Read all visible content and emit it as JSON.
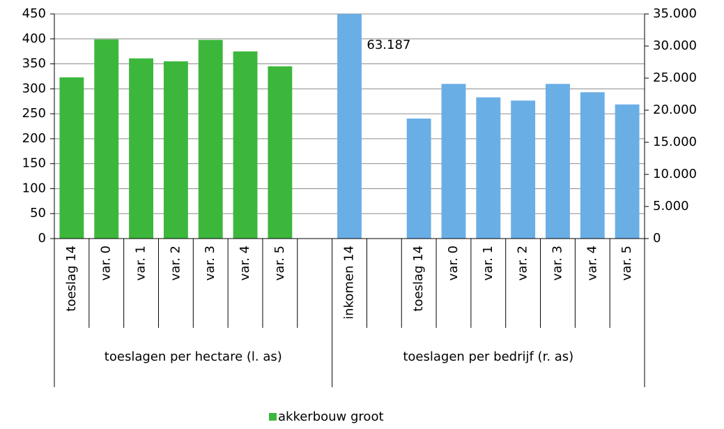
{
  "chart_data": {
    "type": "bar",
    "categories": [
      "toeslag 14",
      "var. 0",
      "var. 1",
      "var. 2",
      "var. 3",
      "var. 4",
      "var. 5",
      null,
      "inkomen 14",
      null,
      "toeslag 14",
      "var. 0",
      "var. 1",
      "var. 2",
      "var. 3",
      "var. 4",
      "var. 5"
    ],
    "groups": [
      {
        "label": "toeslagen per hectare (l. as)",
        "size": 8
      },
      {
        "label": "toeslagen per bedrijf (r. as)",
        "size": 9
      }
    ],
    "series": [
      {
        "name": "akkerbouw groot",
        "color": "#3cb73c",
        "values": [
          323,
          399,
          361,
          355,
          398,
          375,
          345,
          null,
          null,
          null,
          null,
          null,
          null,
          null,
          null,
          null,
          null
        ]
      },
      {
        "color": "#6aaee6",
        "axis": "y2",
        "values": [
          null,
          null,
          null,
          null,
          null,
          null,
          null,
          null,
          63187,
          null,
          18700,
          24100,
          22000,
          21500,
          24100,
          22800,
          20900
        ],
        "value_labels": [
          null,
          null,
          null,
          null,
          null,
          null,
          null,
          null,
          "63.187",
          null,
          null,
          null,
          null,
          null,
          null,
          null,
          null
        ]
      }
    ],
    "ylim": [
      0,
      450
    ],
    "yticks": [
      0,
      50,
      100,
      150,
      200,
      250,
      300,
      350,
      400,
      450
    ],
    "y2lim": [
      0,
      35000
    ],
    "y2ticks": [
      0,
      {
        "value": 5000,
        "label": "5.000"
      },
      {
        "value": 10000,
        "label": "10.000"
      },
      {
        "value": 15000,
        "label": "15.000"
      },
      {
        "value": 20000,
        "label": "20.000"
      },
      {
        "value": 25000,
        "label": "25.000"
      },
      {
        "value": 30000,
        "label": "30.000"
      },
      {
        "value": 35000,
        "label": "35.000"
      }
    ],
    "grid": true,
    "legend": "bottom"
  }
}
